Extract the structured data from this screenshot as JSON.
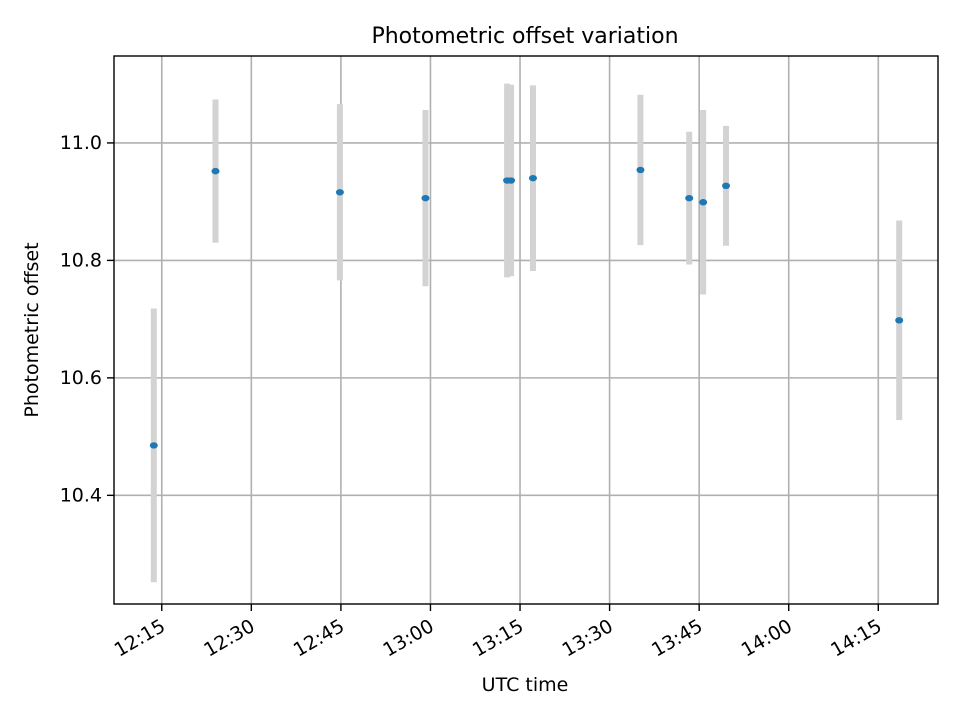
{
  "chart_data": {
    "type": "scatter",
    "title": "Photometric offset variation",
    "xlabel": "UTC time",
    "ylabel": "Photometric offset",
    "xlim": [
      "12:07",
      "14:25"
    ],
    "ylim": [
      10.215,
      11.148
    ],
    "xticks": [
      "12:15",
      "12:30",
      "12:45",
      "13:00",
      "13:15",
      "13:30",
      "13:45",
      "14:00",
      "14:15"
    ],
    "yticks": [
      "10.4",
      "10.6",
      "10.8",
      "11.0"
    ],
    "grid": true,
    "points": [
      {
        "x": "12:13:40",
        "y": 10.485,
        "err": 0.233
      },
      {
        "x": "12:24:00",
        "y": 10.952,
        "err": 0.122
      },
      {
        "x": "12:44:50",
        "y": 10.916,
        "err": 0.15
      },
      {
        "x": "12:59:10",
        "y": 10.906,
        "err": 0.15
      },
      {
        "x": "13:12:50",
        "y": 10.936,
        "err": 0.165
      },
      {
        "x": "13:13:30",
        "y": 10.936,
        "err": 0.163
      },
      {
        "x": "13:17:10",
        "y": 10.94,
        "err": 0.158
      },
      {
        "x": "13:35:10",
        "y": 10.954,
        "err": 0.128
      },
      {
        "x": "13:43:20",
        "y": 10.906,
        "err": 0.113
      },
      {
        "x": "13:45:40",
        "y": 10.899,
        "err": 0.157
      },
      {
        "x": "13:49:30",
        "y": 10.927,
        "err": 0.102
      },
      {
        "x": "14:18:30",
        "y": 10.698,
        "err": 0.17
      }
    ],
    "point_color": "#1f77b4",
    "errorbar_color": "#d3d3d3"
  }
}
